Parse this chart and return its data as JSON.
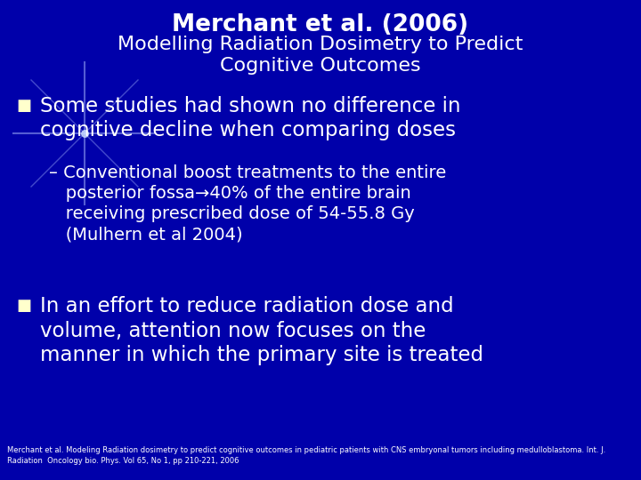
{
  "bg_color": "#0000aa",
  "title_line1": "Merchant et al. (2006)",
  "title_line2": "Modelling Radiation Dosimetry to Predict\nCognitive Outcomes",
  "bullet1_text": "Some studies had shown no difference in\ncognitive decline when comparing doses",
  "sub_bullet_line1": "– Conventional boost treatments to the entire",
  "sub_bullet_line2": "   posterior fossa→40% of the entire brain",
  "sub_bullet_line3": "   receiving prescribed dose of 54-55.8 Gy",
  "sub_bullet_line4": "   (Mulhern et al 2004)",
  "bullet2_text": "In an effort to reduce radiation dose and\nvolume, attention now focuses on the\nmanner in which the primary site is treated",
  "footnote_line1": "Merchant et al. Modeling Radiation dosimetry to predict cognitive outcomes in pediatric patients with CNS embryonal tumors including medulloblastoma. Int. J.",
  "footnote_line2": "Radiation  Oncology bio. Phys. Vol 65, No 1, pp 210-221, 2006",
  "text_color": "#ffffff",
  "bullet_color": "#ffffcc",
  "title_color": "#ffffff",
  "bg_color_dark": "#000080"
}
